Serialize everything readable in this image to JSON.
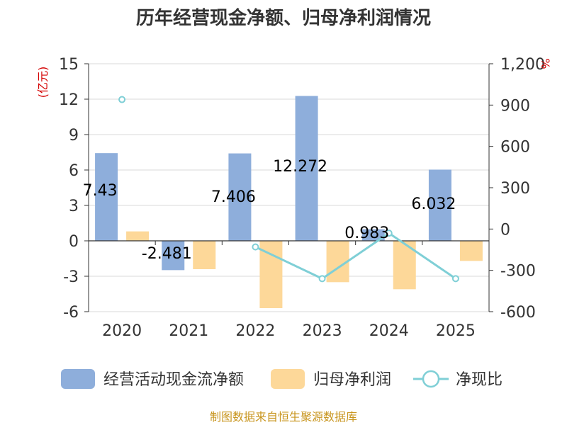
{
  "chart_data": {
    "type": "bar",
    "title": "历年经营现金净额、归母净利润情况",
    "categories": [
      "2020",
      "2021",
      "2022",
      "2023",
      "2024",
      "2025"
    ],
    "series": [
      {
        "name": "经营活动现金流净额",
        "kind": "bar",
        "axis": "left",
        "color": "#8eaedb",
        "values": [
          7.43,
          -2.481,
          7.406,
          12.272,
          0.983,
          6.032
        ],
        "labels": [
          "7.43",
          "-2.481",
          "7.406",
          "12.272",
          "0.983",
          "6.032"
        ]
      },
      {
        "name": "归母净利润",
        "kind": "bar",
        "axis": "left",
        "color": "#fdd899",
        "values": [
          0.8,
          -2.4,
          -5.7,
          -3.5,
          -4.1,
          -1.7
        ]
      },
      {
        "name": "净现比",
        "kind": "line",
        "axis": "right",
        "color": "#7fcfd6",
        "values": [
          940,
          null,
          -130,
          -360,
          -30,
          -360
        ]
      }
    ],
    "y_left": {
      "unit": "(亿元)",
      "range": [
        -6,
        15
      ],
      "ticks": [
        15,
        12,
        9,
        6,
        3,
        0,
        -3,
        -6
      ],
      "tick_labels": [
        "15",
        "12",
        "9",
        "6",
        "3",
        "0",
        "-3",
        "-6"
      ]
    },
    "y_right": {
      "unit": "%",
      "range": [
        -600,
        1200
      ],
      "ticks": [
        1200,
        900,
        600,
        300,
        0,
        -300,
        -600
      ],
      "tick_labels": [
        "1,200",
        "900",
        "600",
        "300",
        "0",
        "-300",
        "-600"
      ]
    },
    "grid": true,
    "legend_position": "bottom"
  },
  "source": "制图数据来自恒生聚源数据库"
}
